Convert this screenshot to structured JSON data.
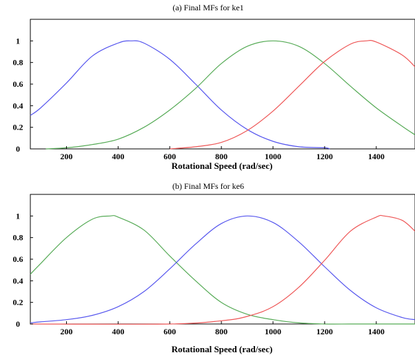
{
  "chart_data": [
    {
      "type": "line",
      "title": "(a) Final MFs for  ke1",
      "xlabel": "Rotational Speed (rad/sec)",
      "ylabel": "",
      "xlim": [
        60,
        1550
      ],
      "ylim": [
        0,
        1.2
      ],
      "xticks": [
        200,
        400,
        600,
        800,
        1000,
        1200,
        1400
      ],
      "yticks": [
        0,
        0.2,
        0.4,
        0.6,
        0.8,
        1
      ],
      "ytick_labels": [
        "0",
        "0.2",
        "0.4",
        "0.6",
        "0.8",
        "1"
      ],
      "grid": false,
      "series": [
        {
          "color": "#5555ee",
          "x": [
            60,
            100,
            200,
            300,
            400,
            450,
            500,
            600,
            700,
            800,
            900,
            1000,
            1100,
            1200,
            1220
          ],
          "y": [
            0.31,
            0.38,
            0.61,
            0.86,
            0.98,
            1.0,
            0.98,
            0.83,
            0.6,
            0.36,
            0.18,
            0.07,
            0.02,
            0.01,
            0.0
          ]
        },
        {
          "color": "#55aa55",
          "x": [
            120,
            200,
            300,
            400,
            500,
            600,
            700,
            800,
            900,
            1000,
            1100,
            1200,
            1300,
            1400,
            1500,
            1550
          ],
          "y": [
            0.0,
            0.01,
            0.04,
            0.09,
            0.2,
            0.36,
            0.56,
            0.79,
            0.95,
            1.0,
            0.95,
            0.79,
            0.58,
            0.38,
            0.21,
            0.13
          ]
        },
        {
          "color": "#ee5555",
          "x": [
            600,
            700,
            800,
            900,
            1000,
            1100,
            1200,
            1300,
            1360,
            1400,
            1500,
            1550
          ],
          "y": [
            0.0,
            0.02,
            0.06,
            0.17,
            0.35,
            0.58,
            0.81,
            0.97,
            1.0,
            0.99,
            0.87,
            0.76
          ]
        }
      ]
    },
    {
      "type": "line",
      "title": "(b) Final MFs for  ke6",
      "xlabel": "Rotational Speed (rad/sec)",
      "ylabel": "",
      "xlim": [
        60,
        1550
      ],
      "ylim": [
        0,
        1.2
      ],
      "xticks": [
        200,
        400,
        600,
        800,
        1000,
        1200,
        1400
      ],
      "yticks": [
        0,
        0.2,
        0.4,
        0.6,
        0.8,
        1
      ],
      "ytick_labels": [
        "0",
        "0.2",
        "0.4",
        "0.6",
        "0.8",
        "1"
      ],
      "grid": false,
      "series": [
        {
          "color": "#55aa55",
          "x": [
            60,
            100,
            200,
            300,
            370,
            400,
            500,
            600,
            700,
            800,
            900,
            1000,
            1100,
            1200,
            1300,
            1400,
            1550
          ],
          "y": [
            0.46,
            0.56,
            0.8,
            0.97,
            1.0,
            0.99,
            0.87,
            0.63,
            0.4,
            0.2,
            0.09,
            0.04,
            0.01,
            0.0,
            0.0,
            0.0,
            0.0
          ]
        },
        {
          "color": "#5555ee",
          "x": [
            60,
            100,
            200,
            300,
            400,
            500,
            600,
            700,
            800,
            900,
            1000,
            1100,
            1200,
            1300,
            1400,
            1500,
            1550
          ],
          "y": [
            0.01,
            0.02,
            0.04,
            0.08,
            0.16,
            0.3,
            0.51,
            0.74,
            0.93,
            1.0,
            0.94,
            0.76,
            0.53,
            0.31,
            0.15,
            0.06,
            0.04
          ]
        },
        {
          "color": "#ee5555",
          "x": [
            60,
            600,
            800,
            900,
            1000,
            1100,
            1200,
            1300,
            1400,
            1430,
            1500,
            1550
          ],
          "y": [
            0.0,
            0.0,
            0.03,
            0.07,
            0.16,
            0.34,
            0.59,
            0.86,
            0.99,
            1.0,
            0.96,
            0.86
          ]
        }
      ]
    }
  ]
}
